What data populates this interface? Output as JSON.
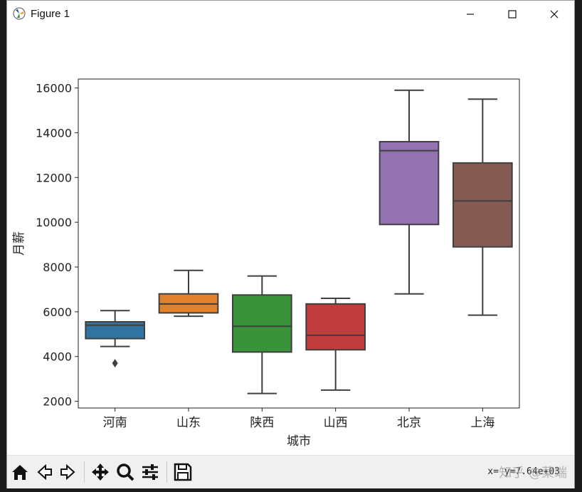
{
  "window": {
    "title": "Figure 1"
  },
  "toolbar": {
    "coords": "x= y=7.64e+03",
    "buttons": [
      "home",
      "back",
      "forward",
      "pan",
      "zoom",
      "configure",
      "save"
    ]
  },
  "watermark": "知乎 @菜端",
  "chart_data": {
    "type": "box",
    "xlabel": "城市",
    "ylabel": "月薪",
    "ylim": [
      1700,
      16400
    ],
    "yticks": [
      2000,
      4000,
      6000,
      8000,
      10000,
      12000,
      14000,
      16000
    ],
    "ytick_labels": [
      "2000",
      "4000",
      "6000",
      "8000",
      "10000",
      "12000",
      "14000",
      "16000"
    ],
    "categories": [
      "河南",
      "山东",
      "陕西",
      "山西",
      "北京",
      "上海"
    ],
    "boxes": [
      {
        "name": "河南",
        "whislo": 4450,
        "q1": 4800,
        "med": 5400,
        "q3": 5550,
        "whishi": 6050,
        "fliers": [
          3700
        ],
        "color": "#3274a1"
      },
      {
        "name": "山东",
        "whislo": 5800,
        "q1": 5950,
        "med": 6350,
        "q3": 6800,
        "whishi": 7850,
        "fliers": [],
        "color": "#e1812c"
      },
      {
        "name": "陕西",
        "whislo": 2350,
        "q1": 4200,
        "med": 5350,
        "q3": 6750,
        "whishi": 7600,
        "fliers": [],
        "color": "#3a923a"
      },
      {
        "name": "山西",
        "whislo": 2500,
        "q1": 4300,
        "med": 4950,
        "q3": 6350,
        "whishi": 6600,
        "fliers": [],
        "color": "#c03d3e"
      },
      {
        "name": "北京",
        "whislo": 6800,
        "q1": 9900,
        "med": 13200,
        "q3": 13600,
        "whishi": 15900,
        "fliers": [],
        "color": "#9372b2"
      },
      {
        "name": "上海",
        "whislo": 5850,
        "q1": 8900,
        "med": 10950,
        "q3": 12650,
        "whishi": 15500,
        "fliers": [],
        "color": "#845b53"
      }
    ]
  }
}
